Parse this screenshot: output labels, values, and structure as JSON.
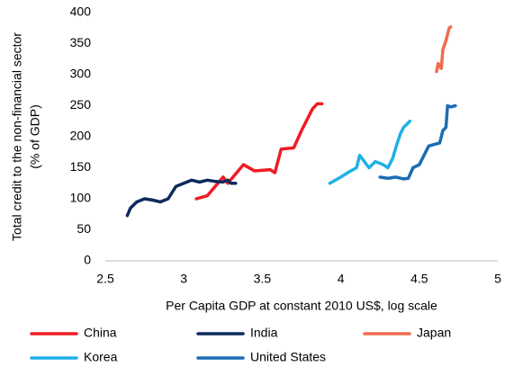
{
  "chart_data": {
    "type": "line",
    "xlabel": "Per Capita GDP at constant 2010 US$, log scale",
    "ylabel": [
      "Total credit to the non-financial sector",
      "(% of GDP)"
    ],
    "xlim": [
      2.5,
      5
    ],
    "xticks": [
      2.5,
      3,
      3.5,
      4,
      4.5,
      5
    ],
    "ylim": [
      0,
      400
    ],
    "yticks": [
      0,
      50,
      100,
      150,
      200,
      250,
      300,
      350,
      400
    ],
    "grid": false,
    "legend": "bottom",
    "series": [
      {
        "name": "China",
        "color": "#ee1c25",
        "x": [
          3.08,
          3.15,
          3.2,
          3.25,
          3.28,
          3.33,
          3.38,
          3.45,
          3.55,
          3.58,
          3.62,
          3.7,
          3.75,
          3.82,
          3.85,
          3.88
        ],
        "values": [
          100,
          105,
          120,
          135,
          125,
          140,
          155,
          145,
          147,
          142,
          180,
          182,
          210,
          245,
          253,
          253
        ]
      },
      {
        "name": "India",
        "color": "#0c2a5b",
        "x": [
          2.64,
          2.66,
          2.7,
          2.75,
          2.8,
          2.85,
          2.9,
          2.95,
          3.0,
          3.05,
          3.1,
          3.15,
          3.2,
          3.25,
          3.28,
          3.3,
          3.33
        ],
        "values": [
          73,
          85,
          95,
          100,
          98,
          95,
          100,
          120,
          125,
          130,
          127,
          130,
          128,
          127,
          130,
          125,
          125
        ]
      },
      {
        "name": "Japan",
        "color": "#f26b4f",
        "x": [
          4.61,
          4.62,
          4.64,
          4.65,
          4.67,
          4.68,
          4.69,
          4.7
        ],
        "values": [
          305,
          318,
          310,
          340,
          355,
          365,
          375,
          377
        ]
      },
      {
        "name": "Korea",
        "color": "#1fb1e6",
        "x": [
          3.93,
          4.0,
          4.05,
          4.1,
          4.12,
          4.15,
          4.18,
          4.22,
          4.27,
          4.3,
          4.33,
          4.36,
          4.38,
          4.4,
          4.44
        ],
        "values": [
          125,
          135,
          143,
          150,
          170,
          160,
          150,
          160,
          155,
          150,
          165,
          190,
          205,
          215,
          225
        ]
      },
      {
        "name": "United States",
        "color": "#1a6db5",
        "x": [
          4.25,
          4.3,
          4.35,
          4.4,
          4.43,
          4.46,
          4.5,
          4.53,
          4.56,
          4.6,
          4.63,
          4.65,
          4.67,
          4.68,
          4.7,
          4.73
        ],
        "values": [
          135,
          133,
          135,
          132,
          133,
          150,
          155,
          170,
          185,
          188,
          190,
          210,
          215,
          250,
          248,
          250
        ]
      }
    ]
  }
}
